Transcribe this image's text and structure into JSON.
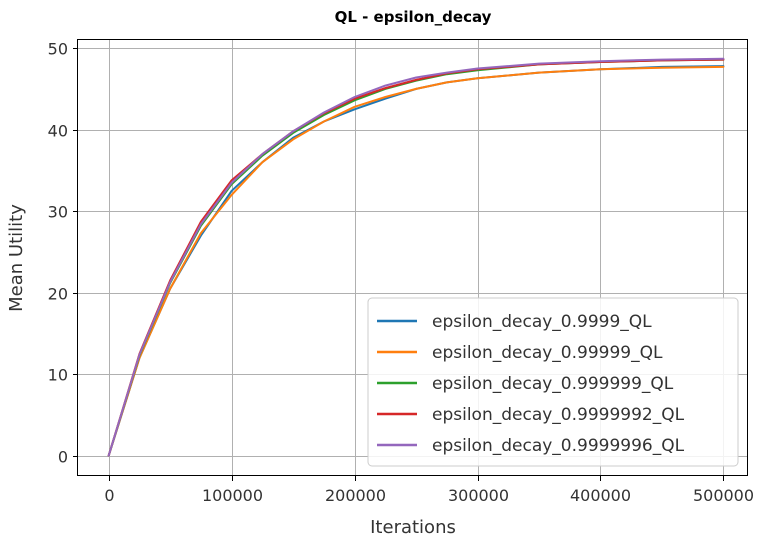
{
  "chart_data": {
    "type": "line",
    "title": "QL - epsilon_decay",
    "xlabel": "Iterations",
    "ylabel": "Mean Utility",
    "xlim": [
      -25000,
      520000
    ],
    "ylim": [
      -2.5,
      51
    ],
    "xticks": [
      0,
      100000,
      200000,
      300000,
      400000,
      500000
    ],
    "yticks": [
      0,
      10,
      20,
      30,
      40,
      50
    ],
    "grid": true,
    "legend_position": "lower right",
    "series": [
      {
        "name": "epsilon_decay_0.9999_QL",
        "color": "#1f77b4",
        "x": [
          0,
          25000,
          50000,
          75000,
          100000,
          125000,
          150000,
          175000,
          200000,
          225000,
          250000,
          275000,
          300000,
          350000,
          400000,
          450000,
          500000
        ],
        "y": [
          0,
          12,
          20.5,
          27,
          32.5,
          36,
          39,
          41,
          42.5,
          43.8,
          45,
          45.8,
          46.3,
          47,
          47.4,
          47.7,
          47.8
        ]
      },
      {
        "name": "epsilon_decay_0.99999_QL",
        "color": "#ff7f0e",
        "x": [
          0,
          25000,
          50000,
          75000,
          100000,
          125000,
          150000,
          175000,
          200000,
          225000,
          250000,
          275000,
          300000,
          350000,
          400000,
          450000,
          500000
        ],
        "y": [
          0,
          12,
          20.5,
          27.3,
          32,
          36,
          38.8,
          41,
          42.8,
          44,
          45,
          45.8,
          46.3,
          47,
          47.4,
          47.6,
          47.7
        ]
      },
      {
        "name": "epsilon_decay_0.999999_QL",
        "color": "#2ca02c",
        "x": [
          0,
          25000,
          50000,
          75000,
          100000,
          125000,
          150000,
          175000,
          200000,
          225000,
          250000,
          275000,
          300000,
          350000,
          400000,
          450000,
          500000
        ],
        "y": [
          0,
          12.3,
          21.2,
          28.2,
          33.3,
          36.8,
          39.6,
          41.8,
          43.6,
          45,
          46,
          46.8,
          47.3,
          48,
          48.3,
          48.5,
          48.6
        ]
      },
      {
        "name": "epsilon_decay_0.9999992_QL",
        "color": "#d62728",
        "x": [
          0,
          25000,
          50000,
          75000,
          100000,
          125000,
          150000,
          175000,
          200000,
          225000,
          250000,
          275000,
          300000,
          350000,
          400000,
          450000,
          500000
        ],
        "y": [
          0,
          12.5,
          21.5,
          28.7,
          33.8,
          37,
          39.8,
          42,
          43.8,
          45.1,
          46.1,
          46.9,
          47.4,
          48,
          48.3,
          48.5,
          48.6
        ]
      },
      {
        "name": "epsilon_decay_0.9999996_QL",
        "color": "#9467bd",
        "x": [
          0,
          25000,
          50000,
          75000,
          100000,
          125000,
          150000,
          175000,
          200000,
          225000,
          250000,
          275000,
          300000,
          350000,
          400000,
          450000,
          500000
        ],
        "y": [
          0,
          12.4,
          21.3,
          28.4,
          33.5,
          37,
          39.8,
          42.1,
          44,
          45.4,
          46.4,
          47,
          47.5,
          48.1,
          48.4,
          48.6,
          48.7
        ]
      }
    ]
  }
}
